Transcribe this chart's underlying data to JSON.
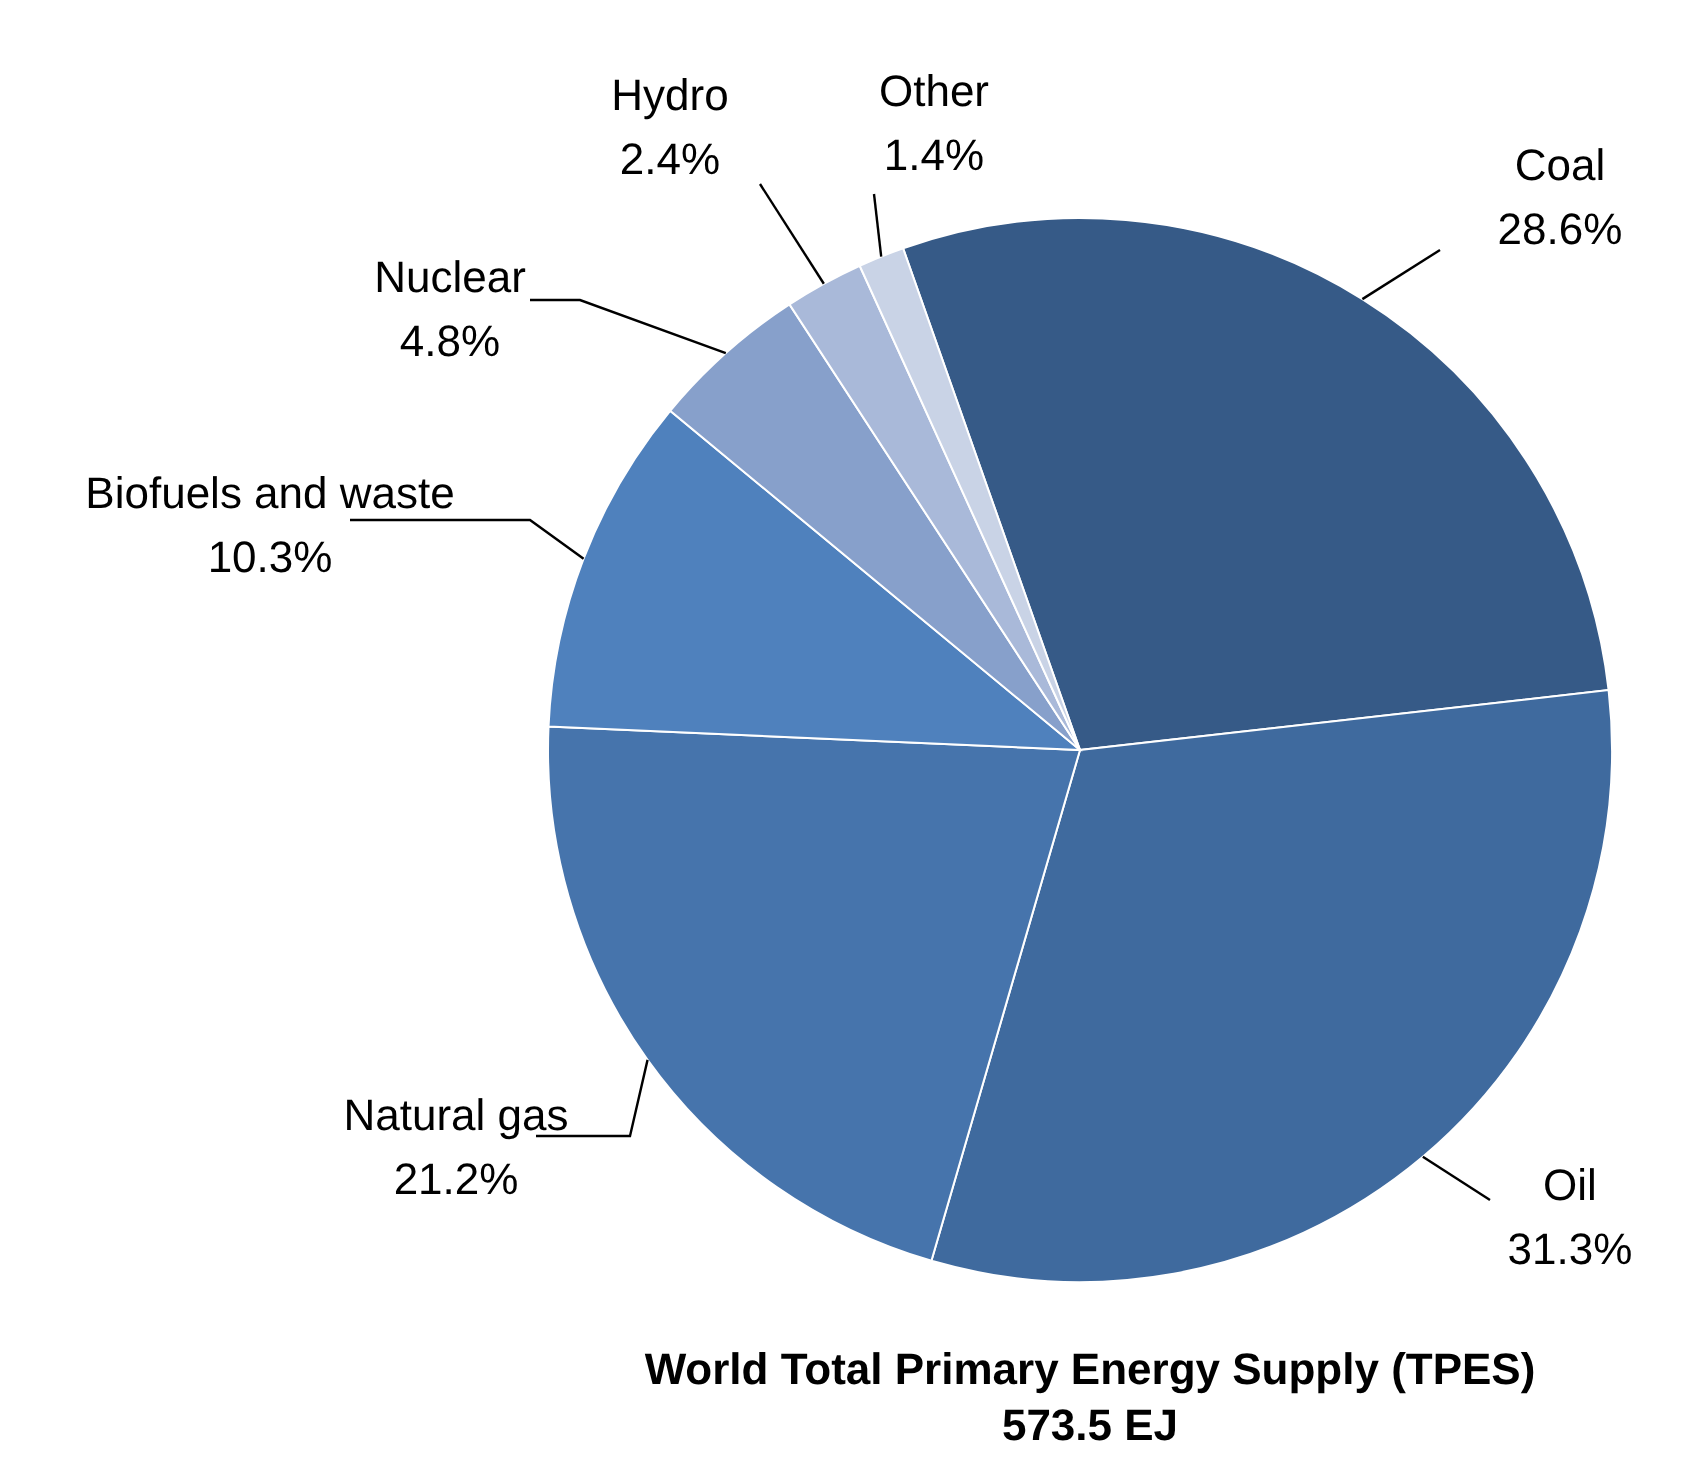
{
  "chart_data": {
    "type": "pie",
    "title": "World Total Primary Energy Supply (TPES)",
    "subtitle": "573.5 EJ",
    "categories": [
      "Coal",
      "Oil",
      "Natural gas",
      "Biofuels and waste",
      "Nuclear",
      "Hydro",
      "Other"
    ],
    "values": [
      28.6,
      31.3,
      21.2,
      10.3,
      4.8,
      2.4,
      1.4
    ],
    "value_labels": [
      "28.6%",
      "31.3%",
      "21.2%",
      "10.3%",
      "4.8%",
      "2.4%",
      "1.4%"
    ],
    "colors": [
      "#365a87",
      "#3f6a9e",
      "#4674ac",
      "#4f81bd",
      "#87a0cb",
      "#a9b9d9",
      "#c9d3e6"
    ]
  }
}
